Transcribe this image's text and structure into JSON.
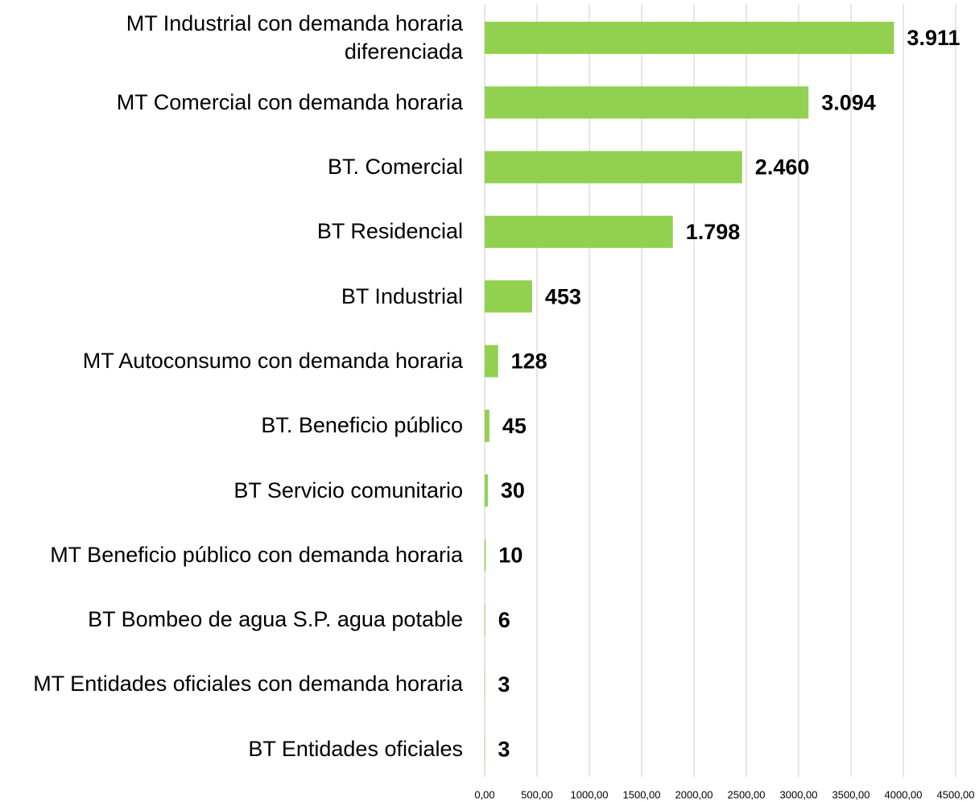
{
  "chart_data": {
    "type": "bar",
    "orientation": "horizontal",
    "categories": [
      "MT Industrial con demanda horaria diferenciada",
      "MT Comercial con demanda horaria",
      "BT. Comercial",
      "BT Residencial",
      "BT Industrial",
      "MT Autoconsumo con demanda horaria",
      "BT. Beneficio público",
      "BT Servicio comunitario",
      "MT Beneficio público con demanda horaria",
      "BT Bombeo de agua S.P. agua potable",
      "MT Entidades oficiales con demanda horaria",
      "BT Entidades oficiales"
    ],
    "values": [
      3911,
      3094,
      2460,
      1798,
      453,
      128,
      45,
      30,
      10,
      6,
      3,
      3
    ],
    "value_labels": [
      "3.911",
      "3.094",
      "2.460",
      "1.798",
      "453",
      "128",
      "45",
      "30",
      "10",
      "6",
      "3",
      "3"
    ],
    "color": "#92d050",
    "xlim": [
      0,
      4500
    ],
    "xticks": [
      {
        "value": 0,
        "label": "0,00"
      },
      {
        "value": 500,
        "label": "500,00"
      },
      {
        "value": 1000,
        "label": "1000,00"
      },
      {
        "value": 1500,
        "label": "1500,00"
      },
      {
        "value": 2000,
        "label": "2000,00"
      },
      {
        "value": 2500,
        "label": "2500,00"
      },
      {
        "value": 3000,
        "label": "3000,00"
      },
      {
        "value": 3500,
        "label": "3500,00"
      },
      {
        "value": 4000,
        "label": "4000,00"
      },
      {
        "value": 4500,
        "label": "4500,00"
      }
    ],
    "grid": true
  }
}
